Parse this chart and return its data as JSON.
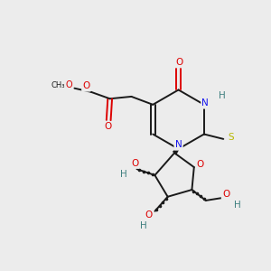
{
  "bg_color": "#ececec",
  "bond_color": "#1a1a1a",
  "colors": {
    "N": "#1515ee",
    "O": "#dd0000",
    "S": "#b8b800",
    "H": "#408080",
    "C": "#1a1a1a"
  },
  "figsize": [
    3.0,
    3.0
  ],
  "dpi": 100,
  "lw": 1.4
}
